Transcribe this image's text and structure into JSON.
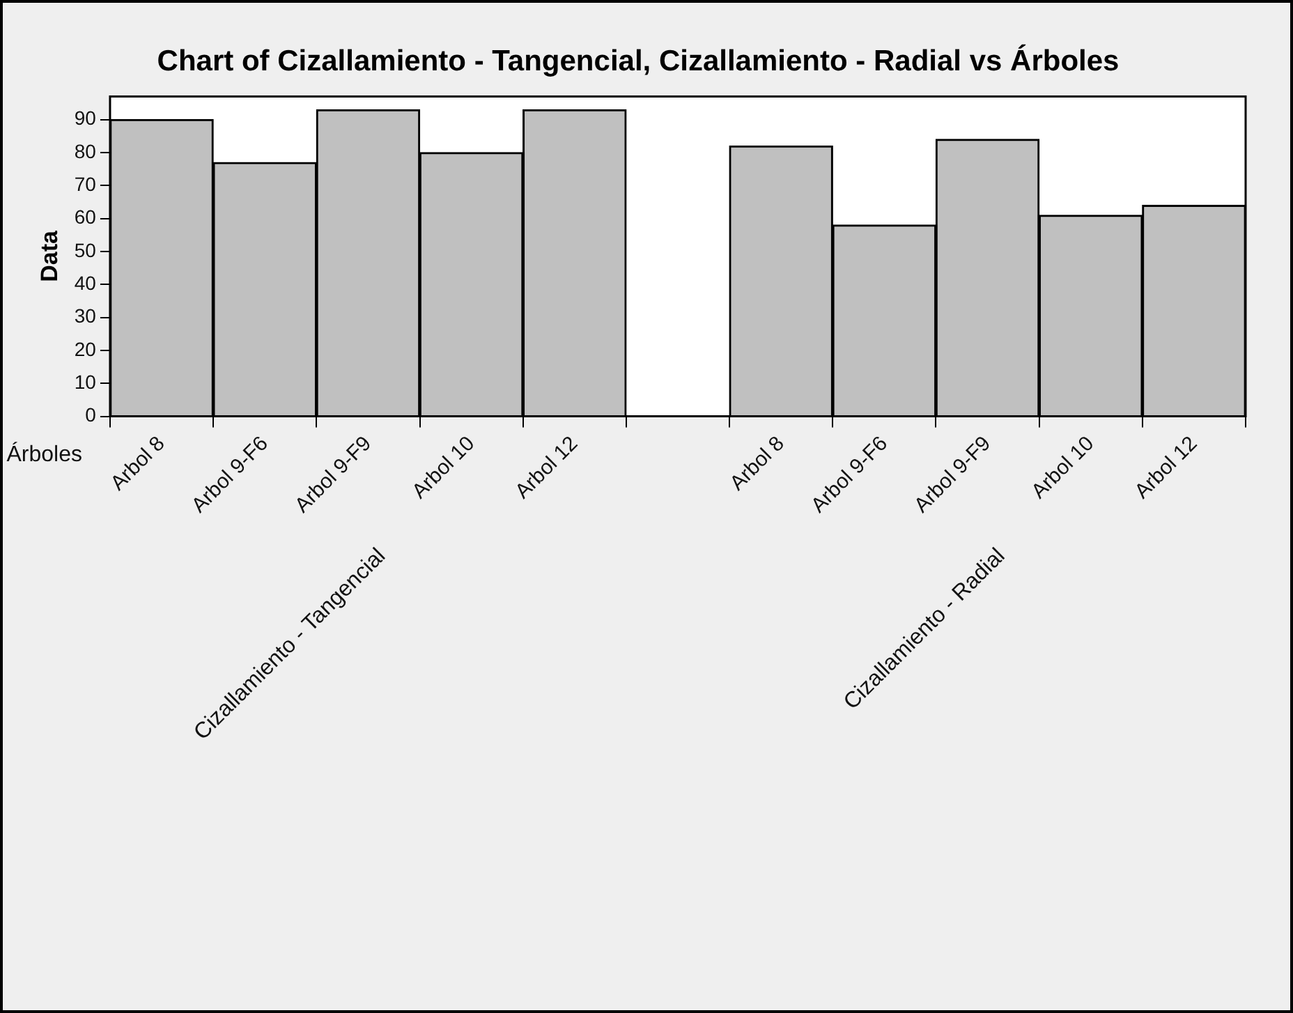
{
  "chart_data": {
    "type": "bar",
    "title": "Chart of Cizallamiento - Tangencial, Cizallamiento - Radial vs Árboles",
    "xlabel": "Árboles",
    "ylabel": "Data",
    "categories": [
      "Arbol 8",
      "Arbol 9-F6",
      "Arbol 9-F9",
      "Arbol 10",
      "Arbol 12",
      null,
      "Arbol 8",
      "Arbol 9-F6",
      "Arbol 9-F9",
      "Arbol 10",
      "Arbol 12"
    ],
    "values": [
      90,
      77,
      93,
      80,
      93,
      null,
      82,
      58,
      84,
      61,
      64
    ],
    "color": "#c0c0c0",
    "ylim": [
      0,
      97
    ],
    "yticks": [
      0,
      10,
      20,
      30,
      40,
      50,
      60,
      70,
      80,
      90
    ],
    "grid": false,
    "legend": false,
    "annotations": [
      "Cizallamiento - Tangencial",
      "Cizallamiento - Radial"
    ]
  }
}
